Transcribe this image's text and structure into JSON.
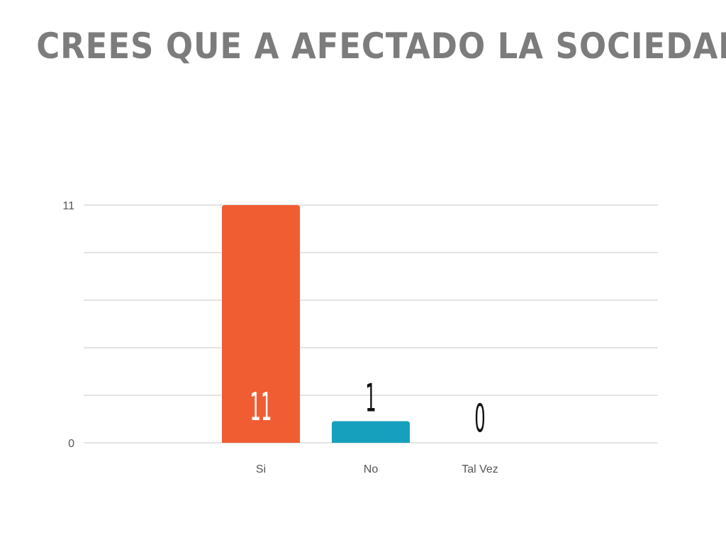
{
  "slide": {
    "title": "CREES QUE A AFECTADO LA SOCIEDAD"
  },
  "colors": {
    "title": "#7c7c7c",
    "grid": "#dcdcdc",
    "axis_text": "#555555",
    "value_label_dark": "#111111",
    "value_label_light": "#ffffff"
  },
  "chart_data": {
    "type": "bar",
    "title": "",
    "xlabel": "",
    "ylabel": "",
    "categories": [
      "Si",
      "No",
      "Tal Vez"
    ],
    "values": [
      11,
      1,
      0
    ],
    "value_labels": [
      "11",
      "1",
      "0"
    ],
    "bar_colors": [
      "#f05d32",
      "#17a0bd",
      "#f05d32"
    ],
    "ylim": [
      0,
      11
    ],
    "y_tick_labels": [
      "0",
      "11"
    ],
    "gridline_count": 5,
    "grid": true,
    "legend": "none"
  }
}
